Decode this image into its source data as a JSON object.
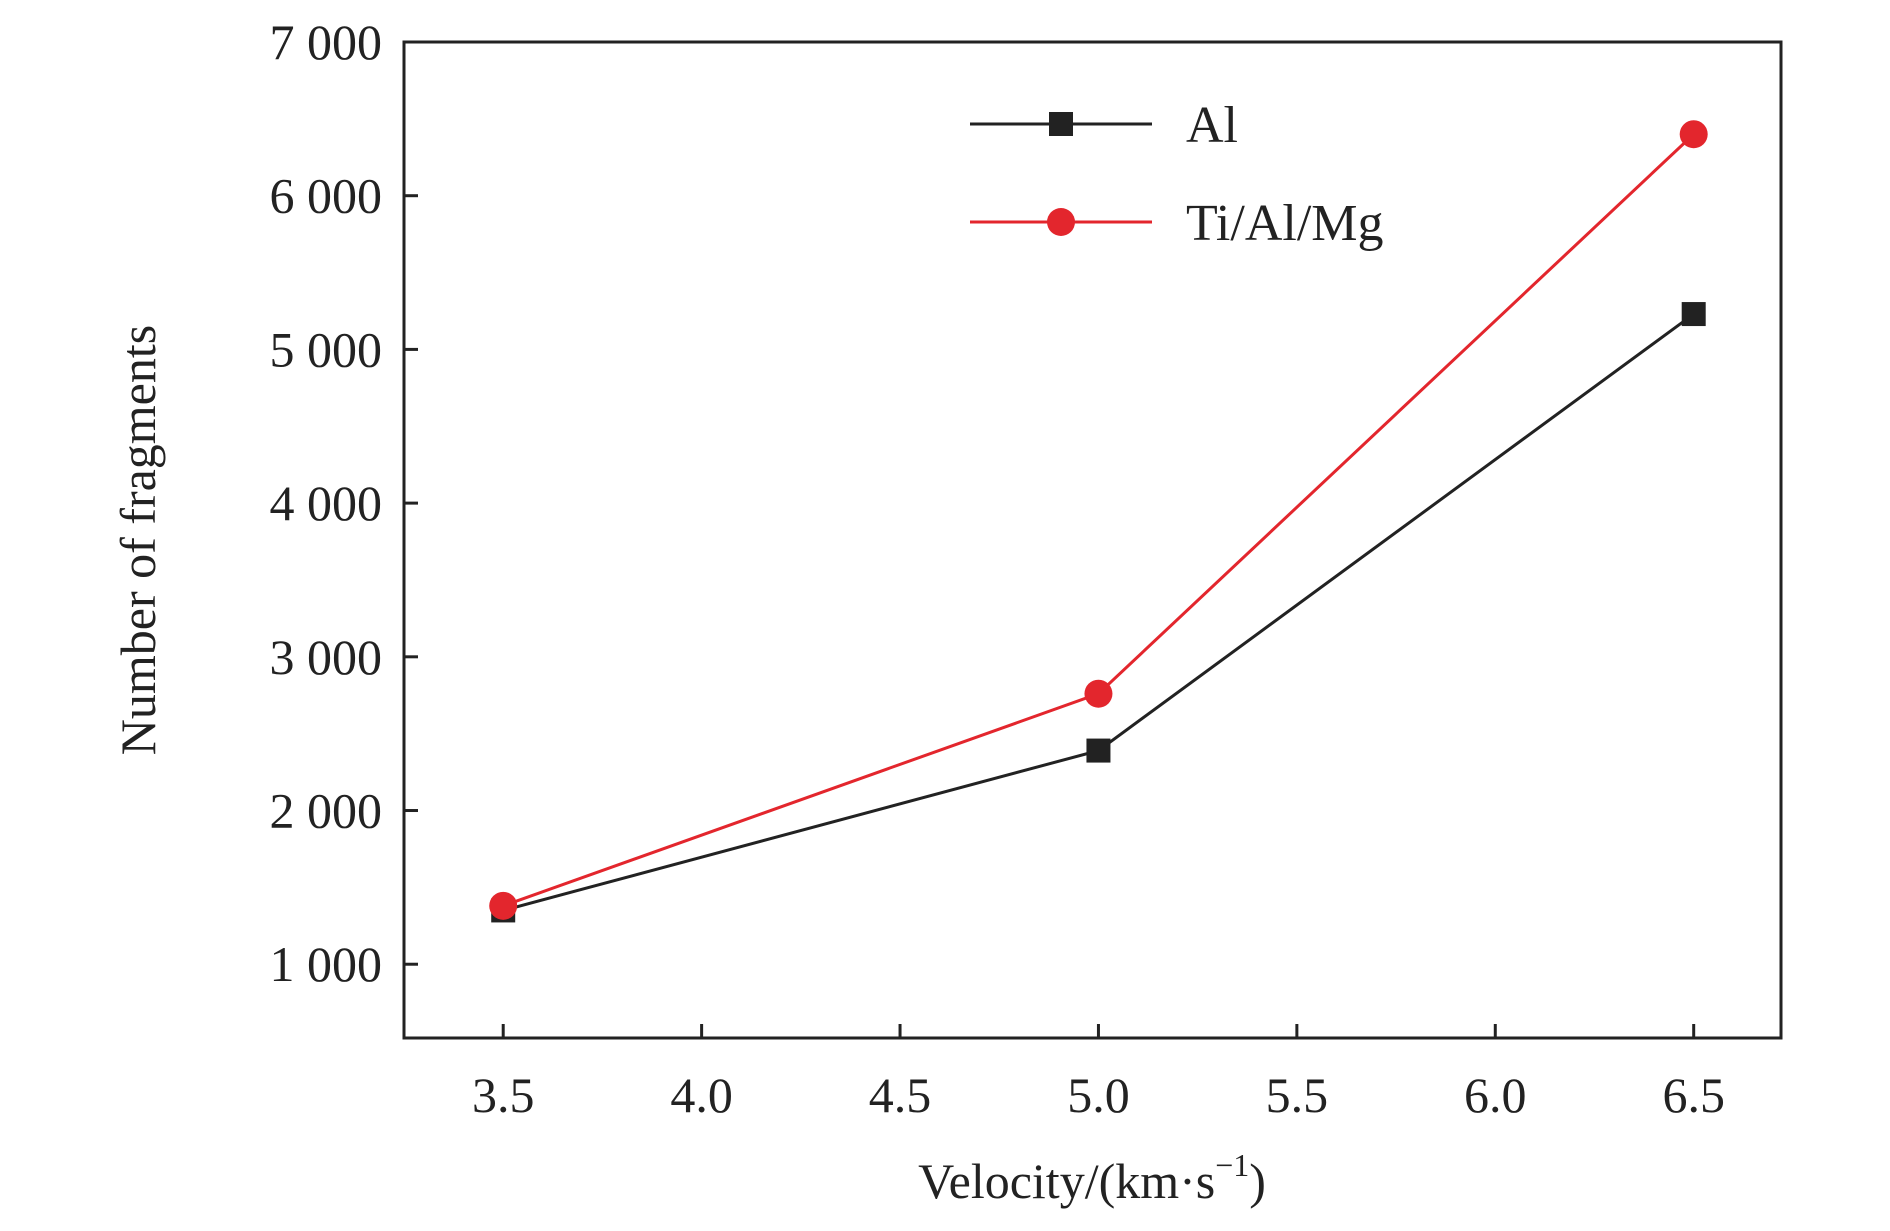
{
  "chart_data": {
    "type": "line",
    "x": [
      3.5,
      5.0,
      6.5
    ],
    "series": [
      {
        "name": "Al",
        "values": [
          1350,
          2390,
          5230
        ],
        "color": "#222222",
        "marker": "square"
      },
      {
        "name": "Ti/Al/Mg",
        "values": [
          1380,
          2760,
          6400
        ],
        "color": "#e3262d",
        "marker": "circle"
      }
    ],
    "xlabel": "Velocity/(km·s",
    "xlabel_sup": "−1",
    "xlabel_close": ")",
    "ylabel": "Number of fragments",
    "xlim": [
      3.25,
      6.72
    ],
    "ylim": [
      520,
      7000
    ],
    "xticks": [
      3.5,
      4.0,
      4.5,
      5.0,
      5.5,
      6.0,
      6.5
    ],
    "xtick_labels": [
      "3.5",
      "4.0",
      "4.5",
      "5.0",
      "5.5",
      "6.0",
      "6.5"
    ],
    "yticks": [
      1000,
      2000,
      3000,
      4000,
      5000,
      6000,
      7000
    ],
    "ytick_labels": [
      "1 000",
      "2 000",
      "3 000",
      "4 000",
      "5 000",
      "6 000",
      "7 000"
    ],
    "grid": false,
    "legend_position": "top-right"
  }
}
